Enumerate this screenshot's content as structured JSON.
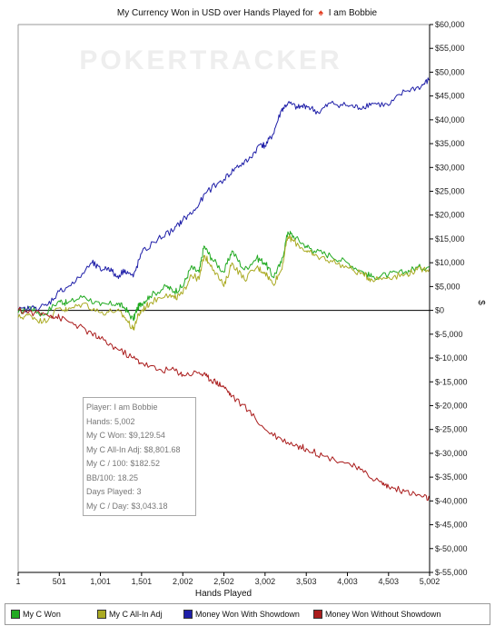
{
  "chart_data": {
    "type": "line",
    "title_prefix": "My Currency Won in USD over Hands Played for",
    "title_player": "I am Bobbie",
    "watermark": "POKERTRACKER",
    "xlabel": "Hands Played",
    "ylabel": "$",
    "xlim": [
      1,
      5002
    ],
    "ylim": [
      -55000,
      60000
    ],
    "x_ticks": [
      1,
      501,
      1001,
      1501,
      2002,
      2502,
      3002,
      3503,
      4003,
      4503,
      5002
    ],
    "x_tick_labels": [
      "1",
      "501",
      "1,001",
      "1,501",
      "2,002",
      "2,502",
      "3,002",
      "3,503",
      "4,003",
      "4,503",
      "5,002"
    ],
    "y_ticks": [
      60000,
      55000,
      50000,
      45000,
      40000,
      35000,
      30000,
      25000,
      20000,
      15000,
      10000,
      5000,
      0,
      -5000,
      -10000,
      -15000,
      -20000,
      -25000,
      -30000,
      -35000,
      -40000,
      -45000,
      -50000,
      -55000
    ],
    "y_tick_labels": [
      "$60,000",
      "$55,000",
      "$50,000",
      "$45,000",
      "$40,000",
      "$35,000",
      "$30,000",
      "$25,000",
      "$20,000",
      "$15,000",
      "$10,000",
      "$5,000",
      "$0",
      "$-5,000",
      "$-10,000",
      "$-15,000",
      "$-20,000",
      "$-25,000",
      "$-30,000",
      "$-35,000",
      "$-40,000",
      "$-45,000",
      "$-50,000",
      "$-55,000"
    ],
    "grid": false,
    "legend_position": "bottom",
    "series": [
      {
        "name": "My C Won",
        "color": "#22aa22",
        "x": [
          1,
          150,
          300,
          501,
          600,
          800,
          1001,
          1200,
          1300,
          1400,
          1450,
          1501,
          1600,
          1800,
          1900,
          2002,
          2100,
          2200,
          2260,
          2350,
          2502,
          2600,
          2750,
          2900,
          3002,
          3100,
          3200,
          3280,
          3350,
          3503,
          3600,
          3800,
          4003,
          4200,
          4300,
          4503,
          4700,
          4850,
          5002
        ],
        "y": [
          -500,
          700,
          -1000,
          2000,
          1500,
          3000,
          1000,
          1500,
          500,
          -2000,
          500,
          1500,
          3000,
          5000,
          4000,
          5000,
          9000,
          8000,
          13500,
          11000,
          8000,
          12500,
          8500,
          11000,
          10000,
          7000,
          10000,
          16500,
          15500,
          13500,
          12500,
          11500,
          10000,
          8000,
          7000,
          7500,
          8000,
          9000,
          9129.54
        ]
      },
      {
        "name": "My C All-In Adj",
        "color": "#aaaa22",
        "x": [
          1,
          150,
          300,
          501,
          600,
          800,
          1001,
          1200,
          1300,
          1400,
          1450,
          1501,
          1600,
          1800,
          1900,
          2002,
          2100,
          2200,
          2260,
          2350,
          2502,
          2600,
          2750,
          2900,
          3002,
          3100,
          3200,
          3280,
          3350,
          3503,
          3600,
          3800,
          4003,
          4200,
          4300,
          4503,
          4700,
          4850,
          5002
        ],
        "y": [
          -1500,
          -1000,
          -2500,
          500,
          0,
          1500,
          -500,
          0,
          -1500,
          -4000,
          -1500,
          0,
          1500,
          3500,
          2500,
          3500,
          7500,
          6500,
          11500,
          9500,
          5000,
          10000,
          6500,
          9000,
          8000,
          5500,
          8500,
          15500,
          14500,
          12500,
          11500,
          10500,
          9000,
          7500,
          6500,
          7000,
          7500,
          8500,
          8801.68
        ]
      },
      {
        "name": "Money Won With Showdown",
        "color": "#1e1ea8",
        "x": [
          1,
          200,
          350,
          501,
          700,
          900,
          1001,
          1100,
          1200,
          1300,
          1400,
          1501,
          1700,
          1900,
          2002,
          2150,
          2300,
          2502,
          2650,
          2800,
          2950,
          3002,
          3100,
          3200,
          3280,
          3400,
          3503,
          3650,
          3800,
          4003,
          4150,
          4300,
          4503,
          4700,
          4900,
          5002
        ],
        "y": [
          0,
          500,
          1000,
          4000,
          6000,
          10000,
          8500,
          9000,
          7000,
          8500,
          7000,
          12000,
          15000,
          17000,
          19000,
          21000,
          25000,
          27500,
          30000,
          31500,
          35000,
          34500,
          37000,
          42000,
          43500,
          42500,
          43000,
          41500,
          43500,
          43000,
          42500,
          43500,
          43000,
          46000,
          47000,
          48500
        ]
      },
      {
        "name": "Money Won Without Showdown",
        "color": "#aa1c1c",
        "x": [
          1,
          200,
          400,
          501,
          700,
          900,
          1001,
          1200,
          1400,
          1501,
          1700,
          1900,
          2002,
          2200,
          2300,
          2400,
          2502,
          2600,
          2800,
          3002,
          3200,
          3400,
          3503,
          3700,
          4003,
          4200,
          4400,
          4503,
          4700,
          4900,
          5002
        ],
        "y": [
          0,
          -500,
          -1000,
          -1500,
          -3000,
          -5000,
          -6000,
          -8000,
          -10000,
          -11000,
          -12500,
          -12500,
          -13500,
          -13000,
          -14000,
          -15000,
          -16000,
          -18000,
          -21000,
          -25000,
          -27000,
          -28500,
          -29000,
          -30500,
          -32000,
          -34000,
          -36000,
          -37000,
          -38000,
          -39000,
          -39500
        ]
      }
    ],
    "stats_box": [
      "Player: I am Bobbie",
      "Hands: 5,002",
      "My C Won: $9,129.54",
      "My C All-In Adj: $8,801.68",
      "My C / 100: $182.52",
      "BB/100: 18.25",
      "Days Played: 3",
      "My C / Day: $3,043.18"
    ]
  }
}
